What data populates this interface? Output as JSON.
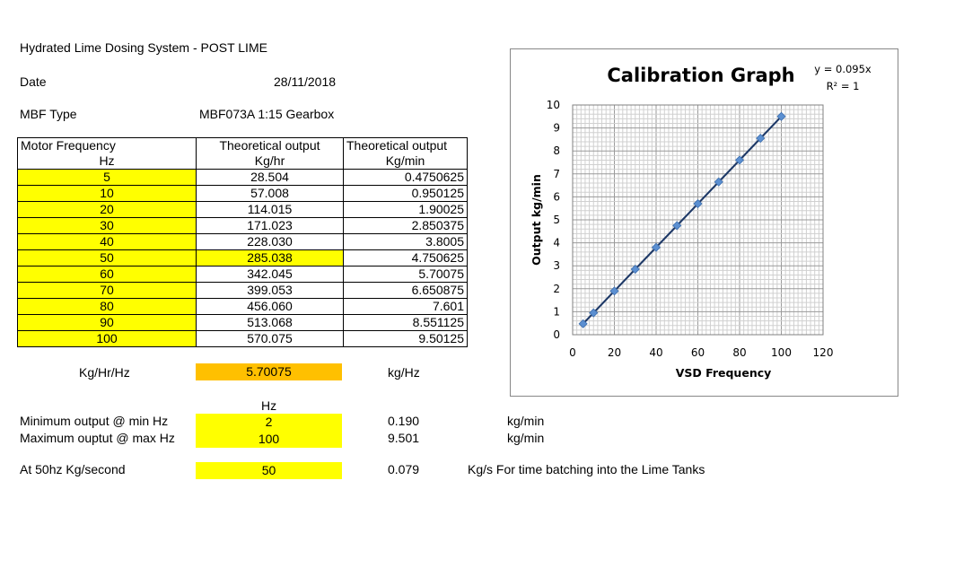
{
  "sheet": {
    "title": "Hydrated Lime Dosing System - POST LIME",
    "date_label": "Date",
    "date_value": "28/11/2018",
    "mbf_label": "MBF Type",
    "mbf_value": "MBF073A 1:15 Gearbox"
  },
  "table": {
    "headers_row1": [
      "Motor Frequency",
      "Theoretical output",
      "Theoretical output"
    ],
    "headers_row2": [
      "Hz",
      "Kg/hr",
      "Kg/min"
    ],
    "rows": [
      [
        "5",
        "28.504",
        "0.4750625"
      ],
      [
        "10",
        "57.008",
        "0.950125"
      ],
      [
        "20",
        "114.015",
        "1.90025"
      ],
      [
        "30",
        "171.023",
        "2.850375"
      ],
      [
        "40",
        "228.030",
        "3.8005"
      ],
      [
        "50",
        "285.038",
        "4.750625"
      ],
      [
        "60",
        "342.045",
        "5.70075"
      ],
      [
        "70",
        "399.053",
        "6.650875"
      ],
      [
        "80",
        "456.060",
        "7.601"
      ],
      [
        "90",
        "513.068",
        "8.551125"
      ],
      [
        "100",
        "570.075",
        "9.50125"
      ]
    ]
  },
  "summary": {
    "kghrhz_label": "Kg/Hr/Hz",
    "kghrhz_value": "5.70075",
    "kghz_unit": "kg/Hz",
    "hz_header": "Hz",
    "min_label": "Minimum output @ min Hz",
    "min_hz": "2",
    "min_value": "0.190",
    "min_unit": "kg/min",
    "max_label": "Maximum ouptut @ max Hz",
    "max_hz": "100",
    "max_value": "9.501",
    "max_unit": "kg/min",
    "sec_label": "At 50hz Kg/second",
    "sec_hz": "50",
    "sec_value": "0.079",
    "sec_note": "Kg/s For time batching into the Lime Tanks"
  },
  "colors": {
    "highlight_yellow": "#ffff00",
    "highlight_orange": "#ffc000",
    "series_line": "#1f3864",
    "marker": "#5b8fd1"
  },
  "chart_data": {
    "type": "scatter",
    "title": "Calibration Graph",
    "trendline_equation": "y = 0.095x",
    "r_squared": "R² = 1",
    "xlabel": "VSD Frequency",
    "ylabel": "Output kg/min",
    "xlim": [
      0,
      120
    ],
    "ylim": [
      0,
      10
    ],
    "xticks": [
      0,
      20,
      40,
      60,
      80,
      100,
      120
    ],
    "yticks": [
      0,
      1,
      2,
      3,
      4,
      5,
      6,
      7,
      8,
      9,
      10
    ],
    "grid": true,
    "x": [
      5,
      10,
      20,
      30,
      40,
      50,
      60,
      70,
      80,
      90,
      100
    ],
    "y": [
      0.4750625,
      0.950125,
      1.90025,
      2.850375,
      3.8005,
      4.750625,
      5.70075,
      6.650875,
      7.601,
      8.551125,
      9.50125
    ],
    "trendline_slope": 0.095
  }
}
